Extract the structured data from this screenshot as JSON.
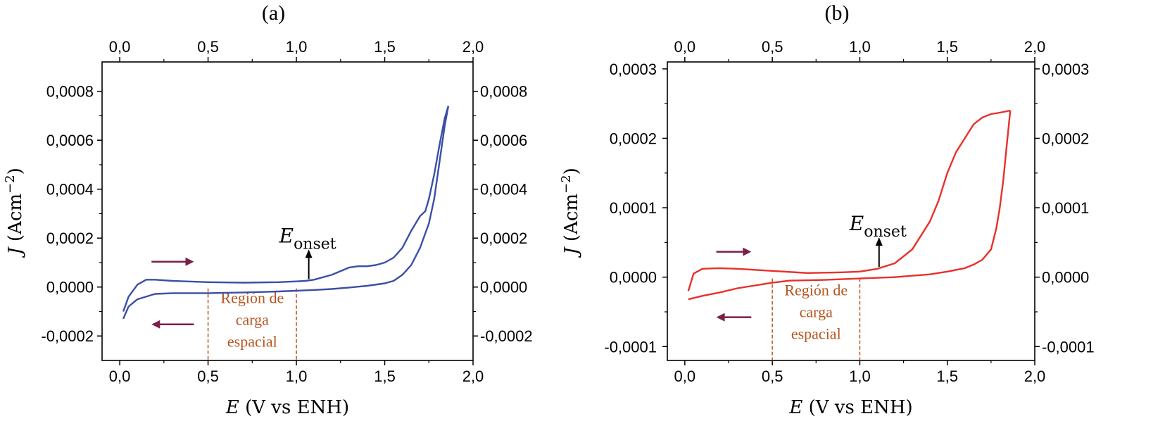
{
  "chart_data": [
    {
      "type": "line",
      "panel_label": "(a)",
      "xlabel_var": "E",
      "xlabel_unit": "(V vs ENH)",
      "ylabel_var": "J",
      "ylabel_unit": "(Acm",
      "ylabel_exp": "−2",
      "ylabel_close": ")",
      "xlim": [
        -0.1,
        2.0
      ],
      "ylim": [
        -0.0003,
        0.00092
      ],
      "xticks": [
        0.0,
        0.5,
        1.0,
        1.5,
        2.0
      ],
      "xtick_labels": [
        "0,0",
        "0,5",
        "1,0",
        "1,5",
        "2,0"
      ],
      "yticks": [
        -0.0002,
        0.0,
        0.0002,
        0.0004,
        0.0006,
        0.0008
      ],
      "ytick_labels": [
        "-0,0002",
        "0,0000",
        "0,0002",
        "0,0004",
        "0,0006",
        "0,0008"
      ],
      "color": "#3a4fa8",
      "series": [
        {
          "x": [
            0.02,
            0.05,
            0.1,
            0.15,
            0.2,
            0.3,
            0.5,
            0.7,
            0.9,
            1.0,
            1.05,
            1.1,
            1.2,
            1.3,
            1.35,
            1.4,
            1.45,
            1.5,
            1.55,
            1.6,
            1.65,
            1.7,
            1.73,
            1.75,
            1.78,
            1.81,
            1.84,
            1.86
          ],
          "y": [
            -0.0001,
            -4e-05,
            1e-05,
            3e-05,
            3e-05,
            2.5e-05,
            2e-05,
            1.8e-05,
            2e-05,
            2.3e-05,
            2.5e-05,
            3e-05,
            5e-05,
            8e-05,
            8.5e-05,
            8.5e-05,
            9e-05,
            0.0001,
            0.00012,
            0.00016,
            0.00023,
            0.00029,
            0.00031,
            0.00036,
            0.00046,
            0.00058,
            0.00069,
            0.00074
          ]
        },
        {
          "x": [
            1.86,
            1.84,
            1.82,
            1.8,
            1.78,
            1.75,
            1.7,
            1.65,
            1.6,
            1.55,
            1.5,
            1.4,
            1.3,
            1.2,
            1.1,
            1.0,
            0.9,
            0.7,
            0.5,
            0.3,
            0.2,
            0.1,
            0.05,
            0.02
          ],
          "y": [
            0.00074,
            0.00066,
            0.00056,
            0.00046,
            0.00036,
            0.00026,
            0.00016,
            9e-05,
            5e-05,
            2.5e-05,
            1.5e-05,
            5e-06,
            -2e-06,
            -8e-06,
            -1.2e-05,
            -1.5e-05,
            -1.8e-05,
            -2.2e-05,
            -2.5e-05,
            -2.5e-05,
            -2.8e-05,
            -5e-05,
            -8e-05,
            -0.00013
          ]
        }
      ],
      "region_x": [
        0.5,
        1.0
      ],
      "region_text": [
        "Región de",
        "carga",
        "espacial"
      ],
      "onset_label": "E",
      "onset_sub": "onset",
      "onset_x": 1.07
    },
    {
      "type": "line",
      "panel_label": "(b)",
      "xlabel_var": "E",
      "xlabel_unit": "(V vs ENH)",
      "ylabel_var": "J",
      "ylabel_unit": "(Acm",
      "ylabel_exp": "−2",
      "ylabel_close": ")",
      "xlim": [
        -0.1,
        2.0
      ],
      "ylim": [
        -0.00012,
        0.00031
      ],
      "xticks": [
        0.0,
        0.5,
        1.0,
        1.5,
        2.0
      ],
      "xtick_labels": [
        "0,0",
        "0,5",
        "1,0",
        "1,5",
        "2,0"
      ],
      "yticks": [
        -0.0001,
        0.0,
        0.0001,
        0.0002,
        0.0003
      ],
      "ytick_labels": [
        "-0,0001",
        "0,0000",
        "0,0001",
        "0,0002",
        "0,0003"
      ],
      "color": "#e8302a",
      "series": [
        {
          "x": [
            0.02,
            0.05,
            0.1,
            0.2,
            0.3,
            0.5,
            0.7,
            0.9,
            1.0,
            1.1,
            1.2,
            1.3,
            1.4,
            1.45,
            1.5,
            1.55,
            1.6,
            1.65,
            1.7,
            1.75,
            1.8,
            1.86
          ],
          "y": [
            -2e-05,
            5e-06,
            1.2e-05,
            1.3e-05,
            1.2e-05,
            9e-06,
            6e-06,
            7e-06,
            8e-06,
            1.2e-05,
            2e-05,
            4e-05,
            8e-05,
            0.00011,
            0.00015,
            0.00018,
            0.0002,
            0.00022,
            0.00023,
            0.000235,
            0.000237,
            0.00024
          ]
        },
        {
          "x": [
            1.86,
            1.84,
            1.82,
            1.8,
            1.78,
            1.75,
            1.7,
            1.65,
            1.6,
            1.5,
            1.4,
            1.2,
            1.0,
            0.8,
            0.6,
            0.5,
            0.3,
            0.2,
            0.1,
            0.02
          ],
          "y": [
            0.00024,
            0.00019,
            0.00014,
            0.0001,
            7e-05,
            4e-05,
            2.5e-05,
            1.8e-05,
            1.3e-05,
            8e-06,
            4e-06,
            0.0,
            -2e-06,
            -4e-06,
            -5e-06,
            -8e-06,
            -1.6e-05,
            -2.2e-05,
            -2.7e-05,
            -3.2e-05
          ]
        }
      ],
      "region_x": [
        0.5,
        1.0
      ],
      "region_text": [
        "Región de",
        "carga",
        "espacial"
      ],
      "onset_label": "E",
      "onset_sub": "onset",
      "onset_x": 1.11
    }
  ],
  "arrow_color": "#7a1f4a",
  "region_color": "#b5561f"
}
